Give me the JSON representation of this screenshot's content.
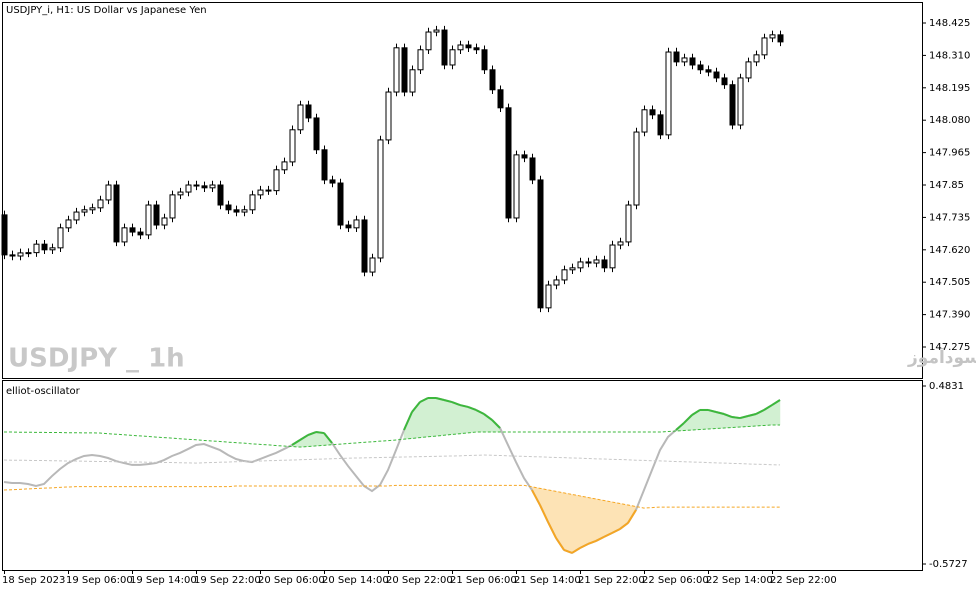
{
  "chart_data": [
    {
      "type": "candlestick",
      "title": "USDJPY_i, H1:  US Dollar vs Japanese Yen",
      "watermark": "USDJPY _ 1h",
      "annotation": "انتشار در سایت سودآموز",
      "categories": [
        "18 Sep 2023",
        null,
        null,
        null,
        null,
        null,
        null,
        null,
        "19 Sep 06:00",
        null,
        null,
        null,
        null,
        null,
        null,
        null,
        "19 Sep 14:00",
        null,
        null,
        null,
        null,
        null,
        null,
        null,
        "19 Sep 22:00",
        null,
        null,
        null,
        null,
        null,
        null,
        null,
        "20 Sep 06:00",
        null,
        null,
        null,
        null,
        null,
        null,
        null,
        "20 Sep 14:00",
        null,
        null,
        null,
        null,
        null,
        null,
        null,
        "20 Sep 22:00",
        null,
        null,
        null,
        null,
        null,
        null,
        null,
        "21 Sep 06:00",
        null,
        null,
        null,
        null,
        null,
        null,
        null,
        "21 Sep 14:00",
        null,
        null,
        null,
        null,
        null,
        null,
        null,
        "21 Sep 22:00",
        null,
        null,
        null,
        null,
        null,
        null,
        null,
        "22 Sep 06:00",
        null,
        null,
        null,
        null,
        null,
        null,
        null,
        "22 Sep 14:00",
        null,
        null,
        null,
        null,
        null,
        null,
        null,
        "22 Sep 22:00",
        null
      ],
      "open": [
        147.744,
        147.602,
        147.598,
        147.609,
        147.61,
        147.64,
        147.62,
        147.627,
        147.698,
        147.726,
        147.754,
        147.762,
        147.769,
        147.797,
        147.85,
        147.648,
        147.698,
        147.683,
        147.673,
        147.779,
        147.708,
        147.733,
        147.815,
        147.825,
        147.85,
        147.847,
        147.84,
        147.85,
        147.779,
        147.762,
        147.754,
        147.762,
        147.815,
        147.832,
        147.83,
        147.904,
        147.932,
        148.046,
        148.134,
        148.088,
        147.975,
        147.868,
        147.857,
        147.708,
        147.698,
        147.726,
        147.541,
        147.591,
        148.01,
        148.18,
        148.337,
        148.18,
        148.259,
        148.33,
        148.393,
        148.4,
        148.276,
        148.33,
        148.347,
        148.337,
        148.33,
        148.259,
        148.188,
        148.124,
        147.733,
        147.957,
        147.946,
        147.868,
        147.414,
        147.495,
        147.513,
        147.549,
        147.556,
        147.577,
        147.573,
        147.584,
        147.556,
        147.637,
        147.648,
        147.779,
        148.038,
        148.117,
        148.099,
        148.028,
        148.322,
        148.287,
        148.301,
        148.276,
        148.259,
        148.251,
        148.23,
        148.206,
        148.063,
        148.23,
        148.287,
        148.312,
        148.372,
        148.383
      ],
      "high": [
        147.759,
        147.617,
        147.624,
        147.625,
        147.655,
        147.655,
        147.642,
        147.713,
        147.741,
        147.769,
        147.777,
        147.784,
        147.812,
        147.865,
        147.865,
        147.713,
        147.713,
        147.698,
        147.794,
        147.794,
        147.748,
        147.83,
        147.84,
        147.865,
        147.865,
        147.862,
        147.865,
        147.865,
        147.794,
        147.777,
        147.777,
        147.83,
        147.847,
        147.847,
        147.919,
        147.947,
        148.061,
        148.149,
        148.149,
        148.103,
        147.99,
        147.883,
        147.872,
        147.723,
        147.741,
        147.741,
        147.606,
        148.025,
        148.195,
        148.352,
        148.352,
        148.274,
        148.345,
        148.408,
        148.415,
        148.415,
        148.345,
        148.362,
        148.362,
        148.352,
        148.345,
        148.274,
        148.203,
        148.139,
        147.972,
        147.972,
        147.961,
        147.883,
        147.51,
        147.528,
        147.564,
        147.571,
        147.592,
        147.592,
        147.599,
        147.599,
        147.652,
        147.663,
        147.794,
        148.053,
        148.132,
        148.132,
        148.114,
        148.337,
        148.337,
        148.316,
        148.316,
        148.291,
        148.274,
        148.266,
        148.245,
        148.221,
        148.245,
        148.302,
        148.327,
        148.387,
        148.398,
        148.398
      ],
      "low": [
        147.587,
        147.583,
        147.583,
        147.594,
        147.595,
        147.605,
        147.605,
        147.612,
        147.683,
        147.711,
        147.739,
        147.747,
        147.754,
        147.782,
        147.633,
        147.633,
        147.668,
        147.658,
        147.658,
        147.693,
        147.693,
        147.718,
        147.8,
        147.81,
        147.832,
        147.825,
        147.825,
        147.764,
        147.747,
        147.739,
        147.739,
        147.747,
        147.8,
        147.815,
        147.815,
        147.889,
        147.917,
        148.031,
        148.073,
        147.96,
        147.853,
        147.842,
        147.693,
        147.683,
        147.683,
        147.526,
        147.526,
        147.576,
        147.995,
        148.165,
        148.165,
        148.165,
        148.244,
        148.315,
        148.378,
        148.261,
        148.261,
        148.315,
        148.322,
        148.315,
        148.244,
        148.173,
        148.109,
        147.718,
        147.718,
        147.931,
        147.853,
        147.399,
        147.399,
        147.48,
        147.498,
        147.534,
        147.541,
        147.558,
        147.558,
        147.541,
        147.541,
        147.622,
        147.633,
        147.764,
        148.023,
        148.084,
        148.013,
        148.013,
        148.272,
        148.272,
        148.261,
        148.244,
        148.236,
        148.215,
        148.191,
        148.048,
        148.048,
        148.215,
        148.272,
        148.297,
        148.357,
        148.343
      ],
      "close": [
        147.602,
        147.598,
        147.609,
        147.61,
        147.64,
        147.62,
        147.627,
        147.698,
        147.726,
        147.754,
        147.762,
        147.769,
        147.797,
        147.85,
        147.648,
        147.698,
        147.683,
        147.673,
        147.779,
        147.708,
        147.733,
        147.815,
        147.825,
        147.85,
        147.847,
        147.84,
        147.85,
        147.779,
        147.762,
        147.754,
        147.762,
        147.815,
        147.832,
        147.83,
        147.904,
        147.932,
        148.046,
        148.134,
        148.088,
        147.975,
        147.868,
        147.857,
        147.708,
        147.698,
        147.726,
        147.541,
        147.591,
        148.01,
        148.18,
        148.337,
        148.18,
        148.259,
        148.33,
        148.393,
        148.4,
        148.276,
        148.33,
        148.347,
        148.337,
        148.33,
        148.259,
        148.188,
        148.124,
        147.733,
        147.957,
        147.946,
        147.868,
        147.414,
        147.495,
        147.513,
        147.549,
        147.556,
        147.577,
        147.573,
        147.584,
        147.556,
        147.637,
        147.648,
        147.779,
        148.038,
        148.117,
        148.099,
        148.028,
        148.322,
        148.287,
        148.301,
        148.276,
        148.259,
        148.251,
        148.23,
        148.206,
        148.063,
        148.23,
        148.287,
        148.312,
        148.372,
        148.383,
        148.358
      ],
      "ylim": [
        147.165,
        148.496
      ],
      "yticks": [
        148.425,
        {
          "value": 148.31,
          "label": "148.310"
        },
        148.195,
        {
          "value": 148.08,
          "label": "148.080"
        },
        147.965,
        147.85,
        147.735,
        {
          "value": 147.62,
          "label": "147.620"
        },
        147.505,
        {
          "value": 147.39,
          "label": "147.390"
        },
        147.275
      ],
      "bull_color": "#ffffff",
      "bear_color": "#000000"
    },
    {
      "type": "line",
      "title": "elliot-oscillator",
      "series": [
        {
          "color": "#b8b8b8",
          "values": [
            -0.086,
            -0.092,
            -0.092,
            -0.098,
            -0.11,
            -0.098,
            -0.051,
            -0.009,
            0.026,
            0.05,
            0.068,
            0.074,
            0.068,
            0.056,
            0.038,
            0.026,
            0.015,
            0.015,
            0.02,
            0.026,
            0.044,
            0.068,
            0.086,
            0.109,
            0.133,
            0.139,
            0.121,
            0.103,
            0.074,
            0.05,
            0.038,
            0.032,
            0.05,
            0.068,
            0.086,
            0.109,
            0.133,
            0.163,
            0.192,
            0.21,
            0.204,
            0.145,
            0.074,
            0.009,
            -0.051,
            -0.11,
            -0.14,
            -0.104,
            -0.015,
            0.103,
            0.222,
            0.329,
            0.388,
            0.412,
            0.412,
            0.4,
            0.388,
            0.37,
            0.359,
            0.341,
            0.317,
            0.282,
            0.234,
            0.133,
            0.032,
            -0.063,
            -0.134,
            -0.223,
            -0.323,
            -0.418,
            -0.489,
            -0.507,
            -0.478,
            -0.454,
            -0.436,
            -0.412,
            -0.389,
            -0.365,
            -0.329,
            -0.252,
            -0.134,
            -0.015,
            0.103,
            0.181,
            0.222,
            0.264,
            0.311,
            0.341,
            0.341,
            0.329,
            0.317,
            0.299,
            0.293,
            0.305,
            0.317,
            0.341,
            0.37,
            0.4
          ]
        },
        {
          "color": "#3cb83c",
          "dashed": true,
          "values": [
            0.21,
            0.21,
            0.209,
            0.209,
            0.208,
            0.208,
            0.207,
            0.207,
            0.206,
            0.206,
            0.205,
            0.205,
            0.204,
            0.2,
            0.197,
            0.194,
            0.19,
            0.187,
            0.184,
            0.18,
            0.177,
            0.174,
            0.17,
            0.167,
            0.164,
            0.16,
            0.157,
            0.154,
            0.15,
            0.147,
            0.144,
            0.14,
            0.137,
            0.134,
            0.13,
            0.127,
            0.124,
            0.121,
            0.124,
            0.128,
            0.131,
            0.135,
            0.138,
            0.142,
            0.145,
            0.149,
            0.152,
            0.156,
            0.159,
            0.163,
            0.168,
            0.172,
            0.177,
            0.182,
            0.186,
            0.191,
            0.196,
            0.2,
            0.205,
            0.21,
            0.21,
            0.21,
            0.21,
            0.21,
            0.21,
            0.21,
            0.21,
            0.21,
            0.21,
            0.21,
            0.21,
            0.21,
            0.21,
            0.21,
            0.21,
            0.21,
            0.21,
            0.21,
            0.21,
            0.21,
            0.21,
            0.21,
            0.21,
            0.213,
            0.216,
            0.219,
            0.222,
            0.225,
            0.228,
            0.231,
            0.234,
            0.237,
            0.24,
            0.243,
            0.246,
            0.249,
            0.252,
            0.252
          ]
        },
        {
          "color": "#c8c8c8",
          "dashed": true,
          "values": [
            0.044,
            0.043,
            0.043,
            0.042,
            0.041,
            0.041,
            0.04,
            0.039,
            0.038,
            0.038,
            0.037,
            0.036,
            0.035,
            0.035,
            0.034,
            0.033,
            0.032,
            0.032,
            0.031,
            0.03,
            0.029,
            0.029,
            0.028,
            0.027,
            0.026,
            0.028,
            0.029,
            0.031,
            0.032,
            0.034,
            0.035,
            0.037,
            0.038,
            0.04,
            0.041,
            0.043,
            0.044,
            0.046,
            0.047,
            0.049,
            0.05,
            0.052,
            0.053,
            0.055,
            0.056,
            0.057,
            0.058,
            0.059,
            0.06,
            0.061,
            0.062,
            0.063,
            0.064,
            0.065,
            0.066,
            0.067,
            0.068,
            0.069,
            0.071,
            0.072,
            0.074,
            0.072,
            0.071,
            0.069,
            0.067,
            0.066,
            0.064,
            0.063,
            0.061,
            0.059,
            0.058,
            0.056,
            0.055,
            0.053,
            0.051,
            0.05,
            0.048,
            0.047,
            0.045,
            0.043,
            0.042,
            0.04,
            0.039,
            0.037,
            0.035,
            0.034,
            0.032,
            0.031,
            0.029,
            0.027,
            0.026,
            0.024,
            0.023,
            0.021,
            0.019,
            0.018,
            0.016,
            0.015
          ]
        },
        {
          "color": "#f5a623",
          "dashed": true,
          "values": [
            -0.134,
            -0.132,
            -0.13,
            -0.127,
            -0.125,
            -0.123,
            -0.121,
            -0.118,
            -0.116,
            -0.114,
            -0.114,
            -0.114,
            -0.114,
            -0.114,
            -0.114,
            -0.114,
            -0.114,
            -0.114,
            -0.114,
            -0.114,
            -0.114,
            -0.114,
            -0.114,
            -0.114,
            -0.114,
            -0.114,
            -0.114,
            -0.114,
            -0.114,
            -0.11,
            -0.11,
            -0.11,
            -0.11,
            -0.11,
            -0.11,
            -0.11,
            -0.11,
            -0.11,
            -0.11,
            -0.11,
            -0.11,
            -0.11,
            -0.11,
            -0.11,
            -0.11,
            -0.11,
            -0.11,
            -0.11,
            -0.11,
            -0.106,
            -0.106,
            -0.106,
            -0.106,
            -0.106,
            -0.106,
            -0.106,
            -0.106,
            -0.106,
            -0.106,
            -0.106,
            -0.106,
            -0.106,
            -0.106,
            -0.106,
            -0.106,
            -0.106,
            -0.115,
            -0.124,
            -0.133,
            -0.142,
            -0.151,
            -0.16,
            -0.169,
            -0.178,
            -0.187,
            -0.196,
            -0.205,
            -0.214,
            -0.223,
            -0.232,
            -0.241,
            -0.238,
            -0.235,
            -0.235,
            -0.235,
            -0.235,
            -0.235,
            -0.235,
            -0.235,
            -0.235,
            -0.235,
            -0.235,
            -0.235,
            -0.235,
            -0.235,
            -0.235,
            -0.235,
            -0.235
          ]
        }
      ],
      "above_color": "#3cb83c",
      "below_color": "#f5a623",
      "above_fill": "#d2f0d2",
      "below_fill": "#fde3b5",
      "ylim": [
        -0.6083,
        0.5128
      ],
      "yticks": [
        0.4831,
        -0.5727
      ]
    }
  ]
}
